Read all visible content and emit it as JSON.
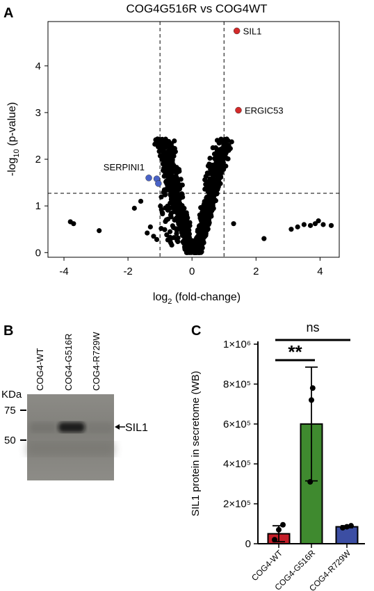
{
  "figure": {
    "panel_a_letter": "A",
    "panel_b_letter": "B",
    "panel_c_letter": "C"
  },
  "chart_data": [
    {
      "panel": "A",
      "type": "scatter",
      "title": "COG4G516R vs COG4WT",
      "xlabel": "log2 (fold-change)",
      "ylabel": "-log10 (p-value)",
      "xlim": [
        -4.5,
        4.6
      ],
      "ylim": [
        -0.1,
        4.95
      ],
      "x_ticks": [
        -4,
        -2,
        0,
        2,
        4
      ],
      "y_ticks": [
        0,
        1,
        2,
        3,
        4
      ],
      "thresholds": {
        "fold_change_log2": [
          -1,
          1
        ],
        "neg_log10_p": 1.27
      },
      "colors": {
        "background": "#000000",
        "up": "#d42a2a",
        "down": "#4a63c7"
      },
      "highlighted_points": [
        {
          "label": "SIL1",
          "x": 1.4,
          "y": 4.75,
          "group": "up"
        },
        {
          "label": "ERGIC53",
          "x": 1.45,
          "y": 3.05,
          "group": "up"
        },
        {
          "label": "SERPINI1",
          "x": -1.35,
          "y": 1.6,
          "group": "down"
        },
        {
          "label": "",
          "x": -1.1,
          "y": 1.58,
          "group": "down"
        },
        {
          "label": "",
          "x": -1.05,
          "y": 1.48,
          "group": "down"
        }
      ],
      "outlier_points": [
        {
          "x": -3.8,
          "y": 0.66
        },
        {
          "x": -3.7,
          "y": 0.62
        },
        {
          "x": -2.9,
          "y": 0.47
        },
        {
          "x": -1.8,
          "y": 0.95
        },
        {
          "x": -1.3,
          "y": 0.55
        },
        {
          "x": -1.2,
          "y": 0.35
        },
        {
          "x": -1.1,
          "y": 0.28
        },
        {
          "x": -1.6,
          "y": 1.1
        },
        {
          "x": -1.4,
          "y": 0.42
        },
        {
          "x": 1.3,
          "y": 0.62
        },
        {
          "x": 2.25,
          "y": 0.3
        },
        {
          "x": 3.1,
          "y": 0.5
        },
        {
          "x": 3.3,
          "y": 0.55
        },
        {
          "x": 3.5,
          "y": 0.6
        },
        {
          "x": 3.7,
          "y": 0.58
        },
        {
          "x": 3.85,
          "y": 0.62
        },
        {
          "x": 3.95,
          "y": 0.68
        },
        {
          "x": 4.1,
          "y": 0.6
        },
        {
          "x": 4.35,
          "y": 0.58
        }
      ]
    },
    {
      "panel": "B",
      "type": "image",
      "lane_labels": [
        "COG4-WT",
        "COG4-G516R",
        "COG4-R729W"
      ],
      "unit_label": "KDa",
      "markers": [
        {
          "label": "75",
          "kda": 75
        },
        {
          "label": "50",
          "kda": 50
        }
      ],
      "band_label": "SIL1",
      "band_intensity": [
        0.1,
        0.9,
        0.05
      ]
    },
    {
      "panel": "C",
      "type": "bar",
      "ylabel": "SIL1 protein in secretome (WB)",
      "xlabel": "",
      "categories": [
        "COG4-WT",
        "COG4-G516R",
        "COG4-R729W"
      ],
      "values": [
        50000,
        600000,
        85000
      ],
      "errors": [
        40000,
        285000,
        5000
      ],
      "colors": [
        "#c41f2a",
        "#3f8a2f",
        "#3c4ea3"
      ],
      "replicates": [
        [
          20000,
          70000,
          95000
        ],
        [
          310000,
          720000,
          780000
        ],
        [
          80000,
          85000,
          90000
        ]
      ],
      "ylim": [
        0,
        1000000
      ],
      "y_tick_labels": [
        "0",
        "2×10⁵",
        "4×10⁵",
        "6×10⁵",
        "8×10⁵",
        "1×10⁶"
      ],
      "y_tick_values": [
        0,
        200000,
        400000,
        600000,
        800000,
        1000000
      ],
      "significance": [
        {
          "from": "COG4-WT",
          "to": "COG4-G516R",
          "label": "**"
        },
        {
          "from": "COG4-WT",
          "to": "COG4-R729W",
          "label": "ns"
        }
      ]
    }
  ]
}
